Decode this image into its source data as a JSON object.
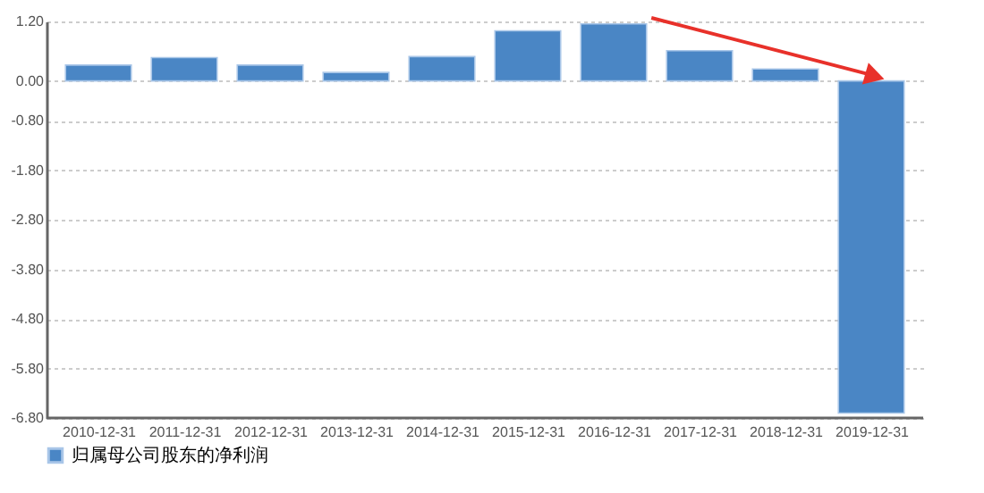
{
  "chart_data": {
    "type": "bar",
    "categories": [
      "2010-12-31",
      "2011-12-31",
      "2012-12-31",
      "2013-12-31",
      "2014-12-31",
      "2015-12-31",
      "2016-12-31",
      "2017-12-31",
      "2018-12-31",
      "2019-12-31"
    ],
    "series": [
      {
        "name": "归属母公司股东的净利润",
        "color": "#4a86c5",
        "values": [
          0.32,
          0.47,
          0.32,
          0.17,
          0.49,
          1.01,
          1.15,
          0.61,
          0.24,
          -6.7
        ]
      }
    ],
    "ylim": [
      -6.8,
      1.2
    ],
    "yticks": [
      {
        "value": 1.2,
        "label": "1.20"
      },
      {
        "value": 0,
        "label": "0.00"
      },
      {
        "value": -0.8,
        "label": "-0.80"
      },
      {
        "value": -1.8,
        "label": "-1.80"
      },
      {
        "value": -2.8,
        "label": "-2.80"
      },
      {
        "value": -3.8,
        "label": "-3.80"
      },
      {
        "value": -4.8,
        "label": "-4.80"
      },
      {
        "value": -5.8,
        "label": "-5.80"
      },
      {
        "value": -6.8,
        "label": "-6.80"
      }
    ],
    "grid": "y",
    "legend": "bottom"
  }
}
